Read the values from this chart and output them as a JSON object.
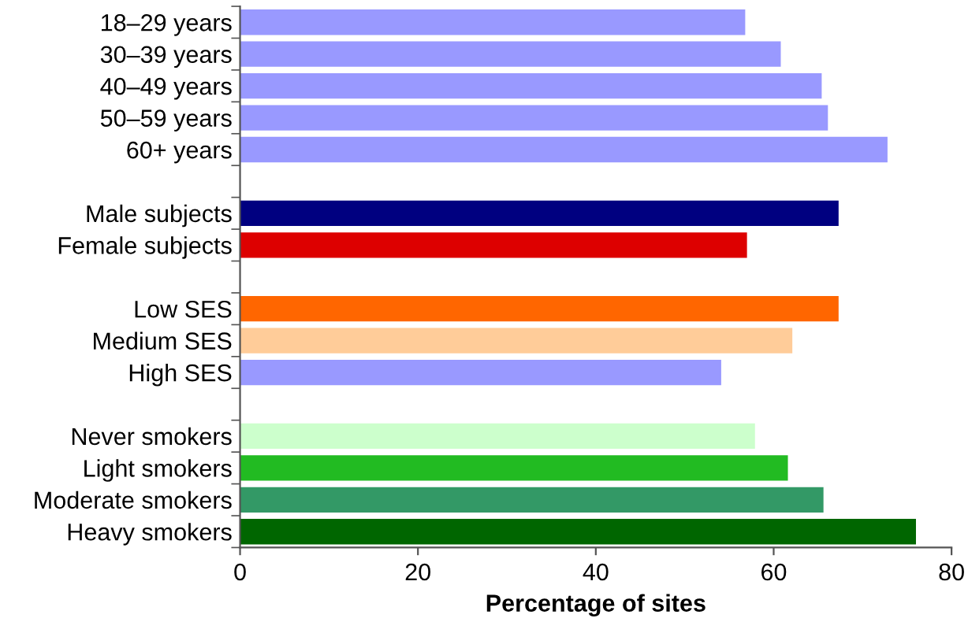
{
  "chart_data": {
    "type": "bar",
    "orientation": "horizontal",
    "xlabel": "Percentage of sites",
    "categories": [
      "18–29 years",
      "30–39 years",
      "40–49 years",
      "50–59 years",
      "60+ years",
      null,
      "Male subjects",
      "Female subjects",
      null,
      "Low SES",
      "Medium SES",
      "High SES",
      null,
      "Never smokers",
      "Light smokers",
      "Moderate smokers",
      "Heavy smokers"
    ],
    "values": [
      56.8,
      60.8,
      65.4,
      66.1,
      72.8,
      null,
      67.3,
      57.0,
      null,
      67.3,
      62.1,
      54.1,
      null,
      57.9,
      61.6,
      65.6,
      76.0
    ],
    "colors": [
      "#9999ff",
      "#9999ff",
      "#9999ff",
      "#9999ff",
      "#9999ff",
      "#ffffff",
      "#000080",
      "#dd0000",
      "#ffffff",
      "#ff6600",
      "#ffcc99",
      "#9999ff",
      "#ffffff",
      "#ccffcc",
      "#22bb22",
      "#339966",
      "#006600"
    ],
    "xlim": [
      0,
      80
    ],
    "xticks": [
      0,
      20,
      40,
      60,
      80
    ],
    "grid": false,
    "legend": false
  }
}
